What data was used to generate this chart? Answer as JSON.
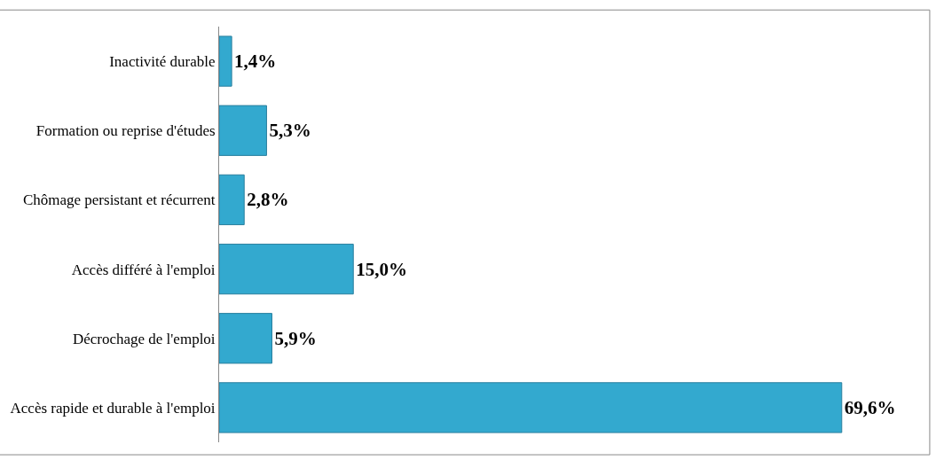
{
  "chart_data": {
    "type": "bar",
    "orientation": "horizontal",
    "categories": [
      "Inactivité durable",
      "Formation ou reprise d'études",
      "Chômage persistant et récurrent",
      "Accès différé à l'emploi",
      "Décrochage de l'emploi",
      "Accès rapide et durable à l'emploi"
    ],
    "values": [
      1.4,
      5.3,
      2.8,
      15.0,
      5.9,
      69.6
    ],
    "value_labels": [
      "1,4%",
      "5,3%",
      "2,8%",
      "15,0%",
      "5,9%",
      "69,6%"
    ],
    "color": "#33a9cf"
  }
}
